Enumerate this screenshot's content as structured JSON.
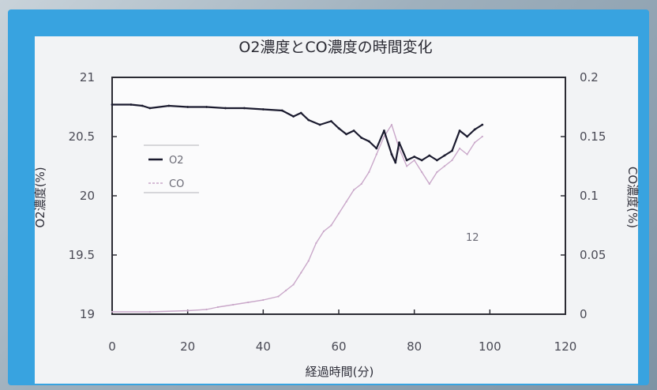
{
  "chart_data": {
    "type": "line",
    "title": "O2濃度とCO濃度の時間変化",
    "xlabel": "経過時間(分)",
    "ylabel": "O2濃度(%)",
    "y2label": "CO濃度(%)",
    "xlim": [
      0,
      120
    ],
    "ylim": [
      19,
      21
    ],
    "y2lim": [
      0,
      0.2
    ],
    "xticks": [
      "0",
      "20",
      "40",
      "60",
      "80",
      "100",
      "120"
    ],
    "yticks": [
      "19",
      "19.5",
      "20",
      "20.5",
      "21"
    ],
    "y2ticks": [
      "0",
      "0.05",
      "0.1",
      "0.15",
      "0.2"
    ],
    "grid": false,
    "legend_position": "upper-left inside plot",
    "annotation": "12",
    "series": [
      {
        "name": "O2",
        "axis": "left",
        "color": "#1a1a2e",
        "x": [
          0,
          5,
          8,
          10,
          15,
          20,
          25,
          30,
          35,
          40,
          45,
          48,
          50,
          52,
          55,
          58,
          60,
          62,
          64,
          66,
          68,
          70,
          72,
          74,
          75,
          76,
          78,
          80,
          82,
          84,
          86,
          88,
          90,
          92,
          94,
          96,
          98
        ],
        "y": [
          20.77,
          20.77,
          20.76,
          20.74,
          20.76,
          20.75,
          20.75,
          20.74,
          20.74,
          20.73,
          20.72,
          20.67,
          20.7,
          20.64,
          20.6,
          20.63,
          20.57,
          20.52,
          20.55,
          20.49,
          20.46,
          20.4,
          20.55,
          20.35,
          20.28,
          20.45,
          20.3,
          20.33,
          20.3,
          20.34,
          20.3,
          20.34,
          20.38,
          20.55,
          20.5,
          20.56,
          20.6
        ]
      },
      {
        "name": "CO",
        "axis": "right",
        "color": "#c9a7c9",
        "x": [
          0,
          10,
          20,
          25,
          28,
          32,
          36,
          40,
          44,
          46,
          48,
          50,
          52,
          54,
          56,
          58,
          60,
          62,
          64,
          66,
          68,
          70,
          72,
          74,
          76,
          78,
          80,
          82,
          84,
          86,
          88,
          90,
          92,
          94,
          96,
          98
        ],
        "y": [
          0.002,
          0.002,
          0.003,
          0.004,
          0.006,
          0.008,
          0.01,
          0.012,
          0.015,
          0.02,
          0.025,
          0.035,
          0.045,
          0.06,
          0.07,
          0.075,
          0.085,
          0.095,
          0.105,
          0.11,
          0.12,
          0.135,
          0.15,
          0.16,
          0.14,
          0.125,
          0.13,
          0.12,
          0.11,
          0.12,
          0.125,
          0.13,
          0.14,
          0.135,
          0.145,
          0.15
        ]
      }
    ]
  }
}
